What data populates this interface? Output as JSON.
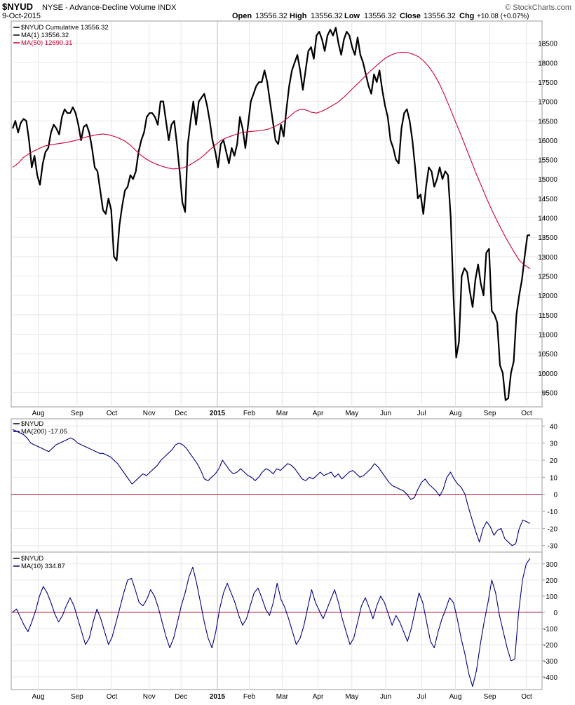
{
  "header": {
    "symbol": "$NYUD",
    "description": "NYSE - Advance-Decline Volume INDX",
    "date": "9-Oct-2015",
    "open_label": "Open",
    "open_value": "13556.32",
    "high_label": "High",
    "high_value": "13556.32",
    "low_label": "Low",
    "low_value": "13556.32",
    "close_label": "Close",
    "close_value": "13556.32",
    "chg_label": "Chg",
    "chg_value": "+10.08 (+0.07%)",
    "copyright": "© StockCharts.com"
  },
  "chart_data": [
    {
      "type": "line",
      "panel": "main",
      "legend": [
        {
          "text": "$NYUD Cumulative 13556.32",
          "color": "#000000"
        },
        {
          "text": "MA(1) 13556.32",
          "color": "#000000"
        },
        {
          "text": "MA(50) 12690.31",
          "color": "#cc0033"
        }
      ],
      "ylim": [
        9200,
        19000
      ],
      "yticks": [
        9500,
        10000,
        10500,
        11000,
        11500,
        12000,
        12500,
        13000,
        13500,
        14000,
        14500,
        15000,
        15500,
        16000,
        16500,
        17000,
        17500,
        18000,
        18500
      ],
      "x_labels": [
        "Aug",
        "Sep",
        "Oct",
        "Nov",
        "Dec",
        "2015",
        "Feb",
        "Mar",
        "Apr",
        "May",
        "Jun",
        "Jul",
        "Aug",
        "Sep",
        "Oct"
      ],
      "x_label_positions": [
        0.055,
        0.134,
        0.205,
        0.281,
        0.346,
        0.42,
        0.485,
        0.552,
        0.625,
        0.694,
        0.763,
        0.836,
        0.905,
        0.975,
        1.05
      ],
      "series": [
        {
          "name": "$NYUD Cumulative",
          "color": "#000000",
          "values": [
            16300,
            16500,
            16200,
            16450,
            16550,
            16500,
            16000,
            15300,
            15600,
            15100,
            14850,
            15400,
            15700,
            15800,
            16200,
            16400,
            16300,
            16150,
            16600,
            16800,
            16700,
            16700,
            16850,
            16700,
            16400,
            16000,
            16350,
            16400,
            16200,
            15800,
            15300,
            15200,
            14700,
            14200,
            14100,
            14500,
            14200,
            13000,
            12900,
            13800,
            14300,
            14700,
            14800,
            15100,
            15000,
            15200,
            15700,
            16000,
            16200,
            16600,
            16700,
            16700,
            16600,
            16400,
            17000,
            17000,
            16500,
            16000,
            16400,
            16500,
            15900,
            15200,
            14400,
            14150,
            15900,
            16500,
            17000,
            16400,
            17000,
            17100,
            17200,
            16900,
            16500,
            16000,
            15700,
            15300,
            15900,
            16000,
            15700,
            15400,
            15800,
            15600,
            15900,
            16600,
            16300,
            15800,
            16400,
            17000,
            17200,
            17400,
            17500,
            17500,
            17800,
            17500,
            17000,
            16500,
            16000,
            15900,
            16400,
            16100,
            16800,
            17400,
            17800,
            18000,
            18200,
            17800,
            17300,
            17800,
            18300,
            18400,
            18100,
            18700,
            18800,
            18600,
            18300,
            18700,
            18850,
            18700,
            18900,
            18500,
            18200,
            18600,
            18800,
            18700,
            18400,
            18200,
            18650,
            18200,
            18000,
            17700,
            17400,
            17200,
            17700,
            17500,
            17800,
            17300,
            16900,
            16600,
            16000,
            15800,
            15500,
            15400,
            16300,
            16700,
            16800,
            16500,
            16000,
            15300,
            14500,
            14600,
            14100,
            14800,
            15300,
            15200,
            14800,
            15000,
            15300,
            15000,
            15200,
            15100,
            14000,
            12000,
            10400,
            10800,
            12500,
            12700,
            12600,
            12100,
            11700,
            12400,
            12800,
            12300,
            12000,
            13100,
            13200,
            11600,
            11500,
            11300,
            10200,
            10000,
            9300,
            9350,
            10000,
            10300,
            11500,
            12000,
            12400,
            13000,
            13546,
            13556
          ]
        },
        {
          "name": "MA(50)",
          "color": "#cc0033",
          "values": [
            15300,
            15400,
            15550,
            15650,
            15720,
            15790,
            15850,
            15880,
            15900,
            15920,
            15940,
            15970,
            16000,
            16050,
            16090,
            16120,
            16150,
            16160,
            16140,
            16100,
            16050,
            15980,
            15880,
            15750,
            15620,
            15520,
            15440,
            15380,
            15330,
            15290,
            15260,
            15270,
            15290,
            15350,
            15430,
            15520,
            15630,
            15760,
            15880,
            15990,
            16060,
            16110,
            16160,
            16200,
            16220,
            16230,
            16240,
            16260,
            16290,
            16350,
            16420,
            16510,
            16620,
            16740,
            16800,
            16780,
            16720,
            16700,
            16750,
            16820,
            16900,
            16980,
            17100,
            17230,
            17370,
            17500,
            17640,
            17780,
            17900,
            18020,
            18130,
            18200,
            18250,
            18270,
            18260,
            18220,
            18160,
            18050,
            17900,
            17700,
            17450,
            17150,
            16820,
            16480,
            16150,
            15800,
            15450,
            15100,
            14780,
            14450,
            14150,
            13870,
            13600,
            13350,
            13120,
            12900,
            12780,
            12690
          ]
        }
      ]
    },
    {
      "type": "line",
      "panel": "indicator-1",
      "legend": [
        {
          "text": "$NYUD",
          "color": "#000000"
        },
        {
          "text": "MA(200) -17.05",
          "color": "#000080"
        }
      ],
      "ylim": [
        -33,
        43
      ],
      "yticks": [
        40,
        30,
        20,
        10,
        0,
        -10,
        -20,
        -30
      ],
      "zero_line": true,
      "series": [
        {
          "name": "MA(200)",
          "color": "#000080",
          "values": [
            38,
            37,
            36,
            35,
            33,
            30,
            29,
            28,
            27,
            26,
            25,
            27,
            29,
            30,
            31,
            32,
            33,
            32,
            30,
            29,
            28,
            27,
            26,
            25,
            24,
            24,
            23,
            22,
            20,
            18,
            15,
            12,
            9,
            6,
            8,
            10,
            12,
            11,
            13,
            15,
            17,
            20,
            22,
            24,
            26,
            29,
            30,
            29,
            27,
            24,
            21,
            18,
            14,
            9,
            8,
            10,
            12,
            15,
            20,
            17,
            14,
            12,
            13,
            15,
            13,
            11,
            10,
            8,
            10,
            13,
            15,
            14,
            12,
            15,
            14,
            16,
            18,
            17,
            15,
            12,
            9,
            8,
            10,
            9,
            11,
            13,
            11,
            12,
            13,
            10,
            12,
            9,
            11,
            13,
            14,
            12,
            10,
            11,
            13,
            15,
            18,
            16,
            13,
            10,
            7,
            5,
            4,
            3,
            2,
            0,
            -3,
            -2,
            3,
            7,
            9,
            6,
            4,
            2,
            -1,
            3,
            10,
            13,
            9,
            6,
            4,
            0,
            -8,
            -15,
            -22,
            -28,
            -20,
            -16,
            -19,
            -24,
            -21,
            -20,
            -26,
            -28,
            -30,
            -29,
            -20,
            -15,
            -16,
            -17
          ]
        }
      ]
    },
    {
      "type": "line",
      "panel": "indicator-2",
      "legend": [
        {
          "text": "$NYUD",
          "color": "#000000"
        },
        {
          "text": "MA(10) 334.87",
          "color": "#000080"
        }
      ],
      "ylim": [
        -470,
        360
      ],
      "yticks": [
        300,
        200,
        100,
        0,
        -100,
        -200,
        -300,
        -400
      ],
      "zero_line": true,
      "series": [
        {
          "name": "MA(10)",
          "color": "#000080",
          "values": [
            0,
            20,
            -30,
            -80,
            -120,
            -60,
            10,
            100,
            160,
            120,
            60,
            -10,
            -60,
            -20,
            40,
            90,
            40,
            -40,
            -120,
            -200,
            -160,
            -60,
            20,
            -40,
            -120,
            -200,
            -150,
            -60,
            30,
            120,
            200,
            210,
            140,
            60,
            40,
            80,
            140,
            100,
            30,
            -60,
            -150,
            -220,
            -160,
            -60,
            40,
            120,
            220,
            280,
            180,
            60,
            -60,
            -160,
            -220,
            -120,
            20,
            120,
            180,
            120,
            60,
            -20,
            -80,
            -40,
            40,
            120,
            150,
            90,
            20,
            -20,
            60,
            180,
            80,
            30,
            -40,
            -120,
            -200,
            -160,
            -80,
            30,
            140,
            60,
            10,
            -40,
            20,
            80,
            140,
            60,
            -40,
            -120,
            -200,
            -160,
            -60,
            40,
            90,
            30,
            -40,
            40,
            100,
            60,
            -10,
            -80,
            -20,
            -60,
            -120,
            -180,
            -100,
            10,
            120,
            60,
            -60,
            -180,
            -220,
            -120,
            -40,
            20,
            90,
            60,
            -40,
            -160,
            -260,
            -380,
            -460,
            -360,
            -200,
            -60,
            60,
            200,
            120,
            -20,
            -120,
            -220,
            -300,
            -290,
            0,
            200,
            300,
            335
          ]
        }
      ]
    }
  ]
}
